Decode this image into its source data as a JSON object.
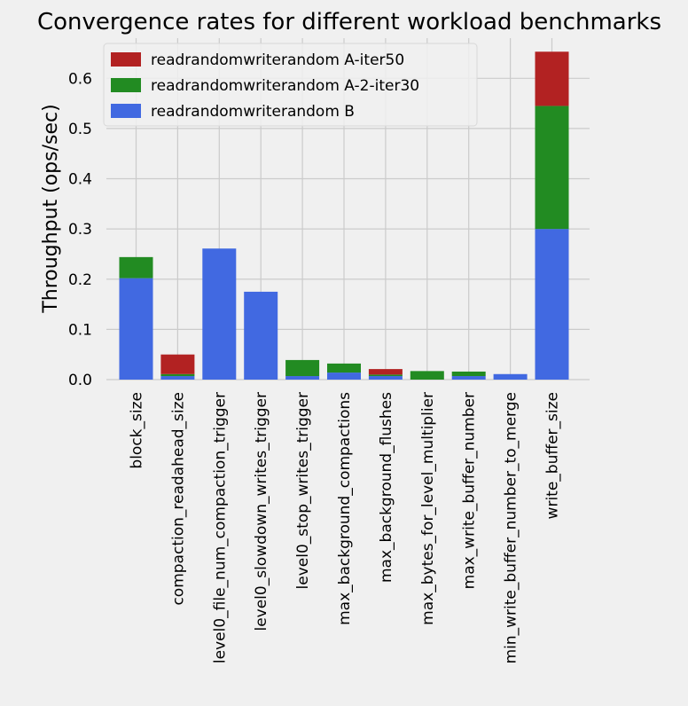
{
  "chart_data": {
    "type": "bar",
    "stacked": true,
    "title": "Convergence rates for different workload benchmarks",
    "xlabel": "",
    "ylabel": "Throughput (ops/sec)",
    "ylim": [
      0,
      0.68
    ],
    "yticks": [
      0.0,
      0.1,
      0.2,
      0.3,
      0.4,
      0.5,
      0.6
    ],
    "ytick_labels": [
      "0.0",
      "0.1",
      "0.2",
      "0.3",
      "0.4",
      "0.5",
      "0.6"
    ],
    "grid": true,
    "legend_position": "top-left",
    "categories": [
      "block_size",
      "compaction_readahead_size",
      "level0_file_num_compaction_trigger",
      "level0_slowdown_writes_trigger",
      "level0_stop_writes_trigger",
      "max_background_compactions",
      "max_background_flushes",
      "max_bytes_for_level_multiplier",
      "max_write_buffer_number",
      "min_write_buffer_number_to_merge",
      "write_buffer_size"
    ],
    "series": [
      {
        "name": "readrandomwriterandom B",
        "color": "#4169e1",
        "values": [
          0.202,
          0.007,
          0.261,
          0.175,
          0.007,
          0.014,
          0.007,
          0.0,
          0.007,
          0.011,
          0.3
        ]
      },
      {
        "name": "readrandomwriterandom A-2-iter30",
        "color": "#228b22",
        "values": [
          0.042,
          0.004,
          0.0,
          0.0,
          0.032,
          0.018,
          0.003,
          0.017,
          0.009,
          0.0,
          0.245
        ]
      },
      {
        "name": "readrandomwriterandom A-iter50",
        "color": "#b22222",
        "values": [
          0.0,
          0.039,
          0.0,
          0.0,
          0.0,
          0.0,
          0.011,
          0.0,
          0.0,
          0.0,
          0.108
        ]
      }
    ],
    "legend_order": [
      2,
      1,
      0
    ]
  }
}
